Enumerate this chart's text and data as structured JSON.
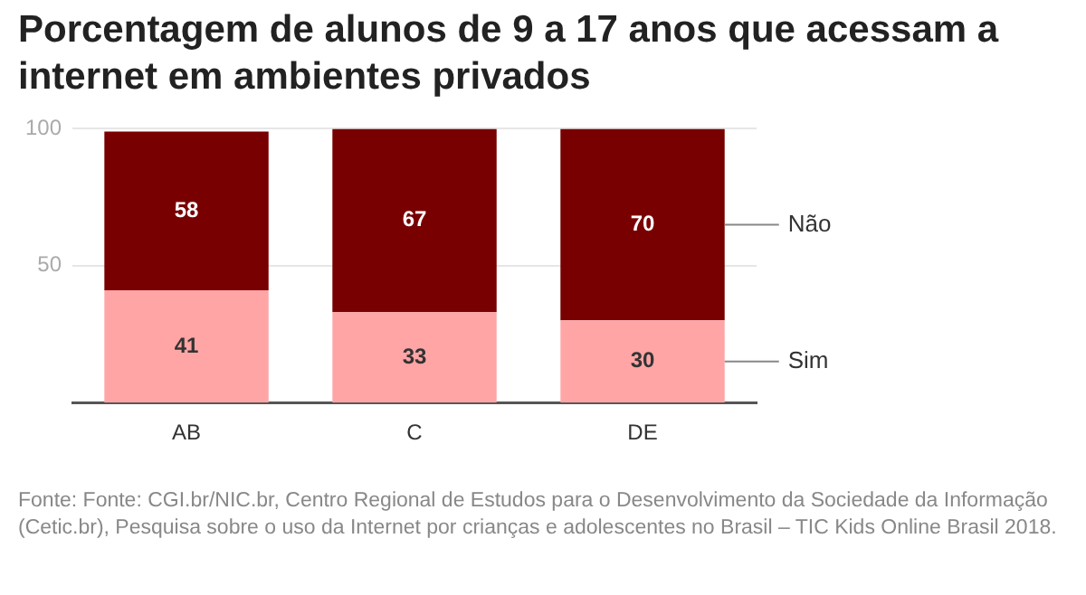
{
  "chart_data": {
    "type": "bar",
    "title": "Porcentagem de alunos de 9 a 17 anos que acessam a internet em ambientes privados",
    "categories": [
      "AB",
      "C",
      "DE"
    ],
    "series": [
      {
        "name": "Sim",
        "color": "#ffa5a5",
        "values": [
          41,
          33,
          30
        ]
      },
      {
        "name": "Não",
        "color": "#790000",
        "values": [
          58,
          67,
          70
        ]
      }
    ],
    "stacked": true,
    "ylim": [
      0,
      100
    ],
    "yticks": [
      50,
      100
    ],
    "grid": "y",
    "data_labels": true,
    "annotations": [
      "Fonte: Fonte: CGI.br/NIC.br, Centro Regional de Estudos para o Desenvolvimento da Sociedade da Informação (Cetic.br), Pesquisa sobre o uso da Internet por crianças e adolescentes no Brasil – TIC Kids Online Brasil 2018."
    ]
  }
}
